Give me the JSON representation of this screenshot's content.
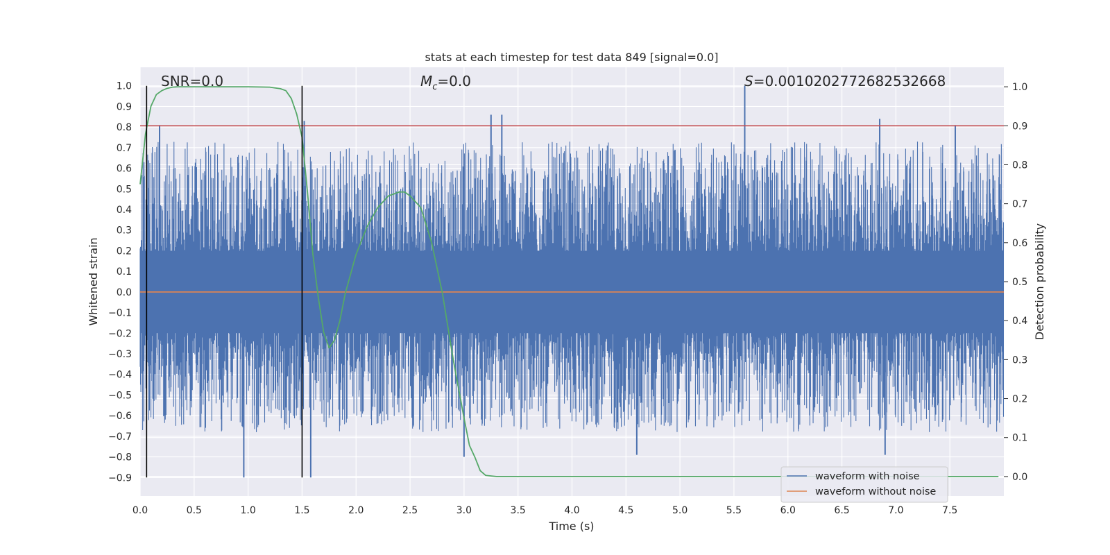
{
  "chart_data": {
    "type": "line",
    "title": "stats at each timestep for test data 849 [signal=0.0]",
    "xlabel": "Time (s)",
    "ylabel": "Whitened strain",
    "y2label": "Detection probability",
    "xlim": [
      0.0,
      8.0
    ],
    "ylim": [
      -0.99,
      1.09
    ],
    "y2lim": [
      -0.05,
      1.05
    ],
    "xticks": [
      "0.0",
      "0.5",
      "1.0",
      "1.5",
      "2.0",
      "2.5",
      "3.0",
      "3.5",
      "4.0",
      "4.5",
      "5.0",
      "5.5",
      "6.0",
      "6.5",
      "7.0",
      "7.5"
    ],
    "yticks": [
      "1.0",
      "0.9",
      "0.8",
      "0.7",
      "0.6",
      "0.5",
      "0.4",
      "0.3",
      "0.2",
      "0.1",
      "0.0",
      "−0.1",
      "−0.2",
      "−0.3",
      "−0.4",
      "−0.5",
      "−0.6",
      "−0.7",
      "−0.8",
      "−0.9"
    ],
    "y2ticks": [
      "1.0",
      "0.9",
      "0.8",
      "0.7",
      "0.6",
      "0.5",
      "0.4",
      "0.3",
      "0.2",
      "0.1",
      "0.0"
    ],
    "grid": true,
    "legend_position": "lower-right",
    "annotations": {
      "snr": "SNR=0.0",
      "mc_symbol": "M",
      "mc_sub": "c",
      "mc_value": "=0.0",
      "s_symbol": "S",
      "s_value": "=0.0010202772682532668"
    },
    "vertical_markers_x": [
      0.06,
      1.5
    ],
    "threshold_probability": 0.9,
    "series": [
      {
        "name": "waveform with noise",
        "color": "#4c72b0",
        "description_values": {
          "min": -0.9,
          "max": 1.0,
          "peaks": [
            [
              0.18,
              0.81
            ],
            [
              1.52,
              0.83
            ],
            [
              3.25,
              0.86
            ],
            [
              3.35,
              0.86
            ],
            [
              5.6,
              1.0
            ],
            [
              6.85,
              0.84
            ],
            [
              7.55,
              0.81
            ]
          ],
          "troughs": [
            [
              0.96,
              -0.9
            ],
            [
              1.58,
              -0.9
            ],
            [
              3.0,
              -0.8
            ],
            [
              4.6,
              -0.79
            ],
            [
              6.9,
              -0.79
            ]
          ]
        }
      },
      {
        "name": "waveform without noise",
        "color": "#dd8452",
        "x": [
          0.0,
          8.0
        ],
        "y": [
          0.0,
          0.0
        ]
      },
      {
        "color": "#55a868",
        "axis": "right",
        "x": [
          0.0,
          0.05,
          0.1,
          0.15,
          0.2,
          0.25,
          0.3,
          0.35,
          0.4,
          0.5,
          0.6,
          0.8,
          1.0,
          1.2,
          1.3,
          1.35,
          1.4,
          1.45,
          1.5,
          1.55,
          1.6,
          1.65,
          1.7,
          1.75,
          1.8,
          1.85,
          1.9,
          2.0,
          2.1,
          2.2,
          2.3,
          2.4,
          2.45,
          2.5,
          2.6,
          2.7,
          2.8,
          2.9,
          3.0,
          3.05,
          3.1,
          3.15,
          3.2,
          3.3,
          3.5,
          4.0,
          5.0,
          6.0,
          7.0,
          7.95
        ],
        "y": [
          0.75,
          0.88,
          0.95,
          0.98,
          0.99,
          0.996,
          0.999,
          1.0,
          1.0,
          1.0,
          1.0,
          1.0,
          1.0,
          0.999,
          0.995,
          0.99,
          0.97,
          0.93,
          0.87,
          0.73,
          0.57,
          0.46,
          0.37,
          0.33,
          0.35,
          0.4,
          0.47,
          0.57,
          0.64,
          0.69,
          0.72,
          0.73,
          0.73,
          0.72,
          0.69,
          0.6,
          0.47,
          0.3,
          0.15,
          0.08,
          0.05,
          0.015,
          0.003,
          0.0,
          0.0,
          0.0,
          0.0,
          0.0,
          0.0,
          0.0
        ]
      },
      {
        "color": "#c44e52",
        "axis": "right",
        "x": [
          0.0,
          8.0
        ],
        "y": [
          0.9,
          0.9
        ]
      }
    ]
  }
}
